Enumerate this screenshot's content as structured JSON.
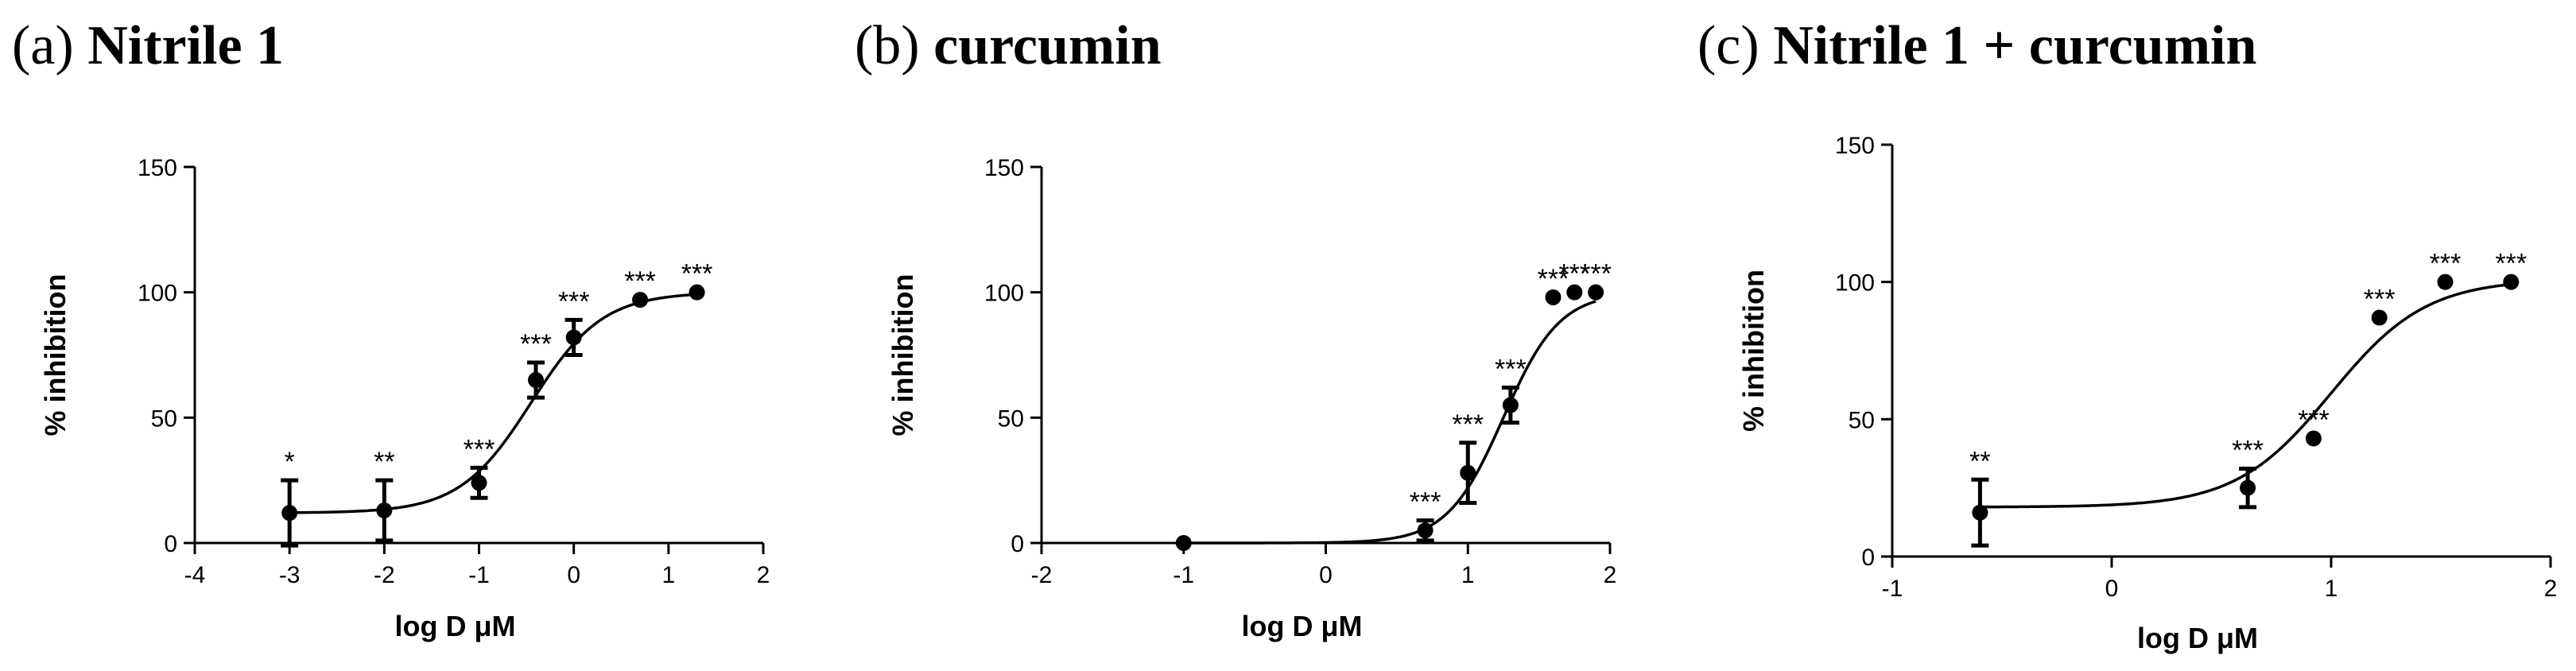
{
  "chart_data": [
    {
      "type": "scatter",
      "panel": "(a)",
      "title": "Nitrile 1",
      "xlabel": "log D μM",
      "ylabel": "% inhibition",
      "xlim": [
        -4,
        2
      ],
      "ylim": [
        0,
        150
      ],
      "xticks": [
        -4,
        -3,
        -2,
        -1,
        0,
        1,
        2
      ],
      "yticks": [
        0,
        50,
        100,
        150
      ],
      "points": [
        {
          "x": -3.0,
          "y": 12,
          "err": 13,
          "sig": "*"
        },
        {
          "x": -2.0,
          "y": 13,
          "err": 12,
          "sig": "**"
        },
        {
          "x": -1.0,
          "y": 24,
          "err": 6,
          "sig": "***"
        },
        {
          "x": -0.4,
          "y": 65,
          "err": 7,
          "sig": "***"
        },
        {
          "x": 0.0,
          "y": 82,
          "err": 7,
          "sig": "***"
        },
        {
          "x": 0.7,
          "y": 97,
          "err": 0,
          "sig": "***"
        },
        {
          "x": 1.3,
          "y": 100,
          "err": 0,
          "sig": "***"
        }
      ],
      "fit": {
        "bottom": 12,
        "top": 100,
        "logEC50": -0.45,
        "hill": 1.15
      }
    },
    {
      "type": "scatter",
      "panel": "(b)",
      "title": "curcumin",
      "xlabel": "log D μM",
      "ylabel": "% inhibition",
      "xlim": [
        -2,
        2
      ],
      "ylim": [
        0,
        150
      ],
      "xticks": [
        -2,
        -1,
        0,
        1,
        2
      ],
      "yticks": [
        0,
        50,
        100,
        150
      ],
      "points": [
        {
          "x": -1.0,
          "y": 0,
          "err": 0,
          "sig": ""
        },
        {
          "x": 0.7,
          "y": 5,
          "err": 4,
          "sig": "***"
        },
        {
          "x": 1.0,
          "y": 28,
          "err": 12,
          "sig": "***"
        },
        {
          "x": 1.3,
          "y": 55,
          "err": 7,
          "sig": "***"
        },
        {
          "x": 1.6,
          "y": 98,
          "err": 0,
          "sig": "***"
        },
        {
          "x": 1.75,
          "y": 100,
          "err": 0,
          "sig": "***"
        },
        {
          "x": 1.9,
          "y": 100,
          "err": 0,
          "sig": "***"
        }
      ],
      "fit": {
        "bottom": 0,
        "top": 100,
        "logEC50": 1.25,
        "hill": 2.2
      }
    },
    {
      "type": "scatter",
      "panel": "(c)",
      "title": "Nitrile 1 + curcumin",
      "xlabel": "log D μM",
      "ylabel": "% inhibition",
      "xlim": [
        -1,
        2
      ],
      "ylim": [
        0,
        150
      ],
      "xticks": [
        -1,
        0,
        1,
        2
      ],
      "yticks": [
        0,
        50,
        100,
        150
      ],
      "points": [
        {
          "x": -0.6,
          "y": 16,
          "err": 12,
          "sig": "**"
        },
        {
          "x": 0.62,
          "y": 25,
          "err": 7,
          "sig": "***"
        },
        {
          "x": 0.92,
          "y": 43,
          "err": 0,
          "sig": "***"
        },
        {
          "x": 1.22,
          "y": 87,
          "err": 0,
          "sig": "***"
        },
        {
          "x": 1.52,
          "y": 100,
          "err": 0,
          "sig": "***"
        },
        {
          "x": 1.82,
          "y": 100,
          "err": 0,
          "sig": "***"
        }
      ],
      "fit": {
        "bottom": 18,
        "top": 101,
        "logEC50": 1.0,
        "hill": 2.0
      }
    }
  ]
}
